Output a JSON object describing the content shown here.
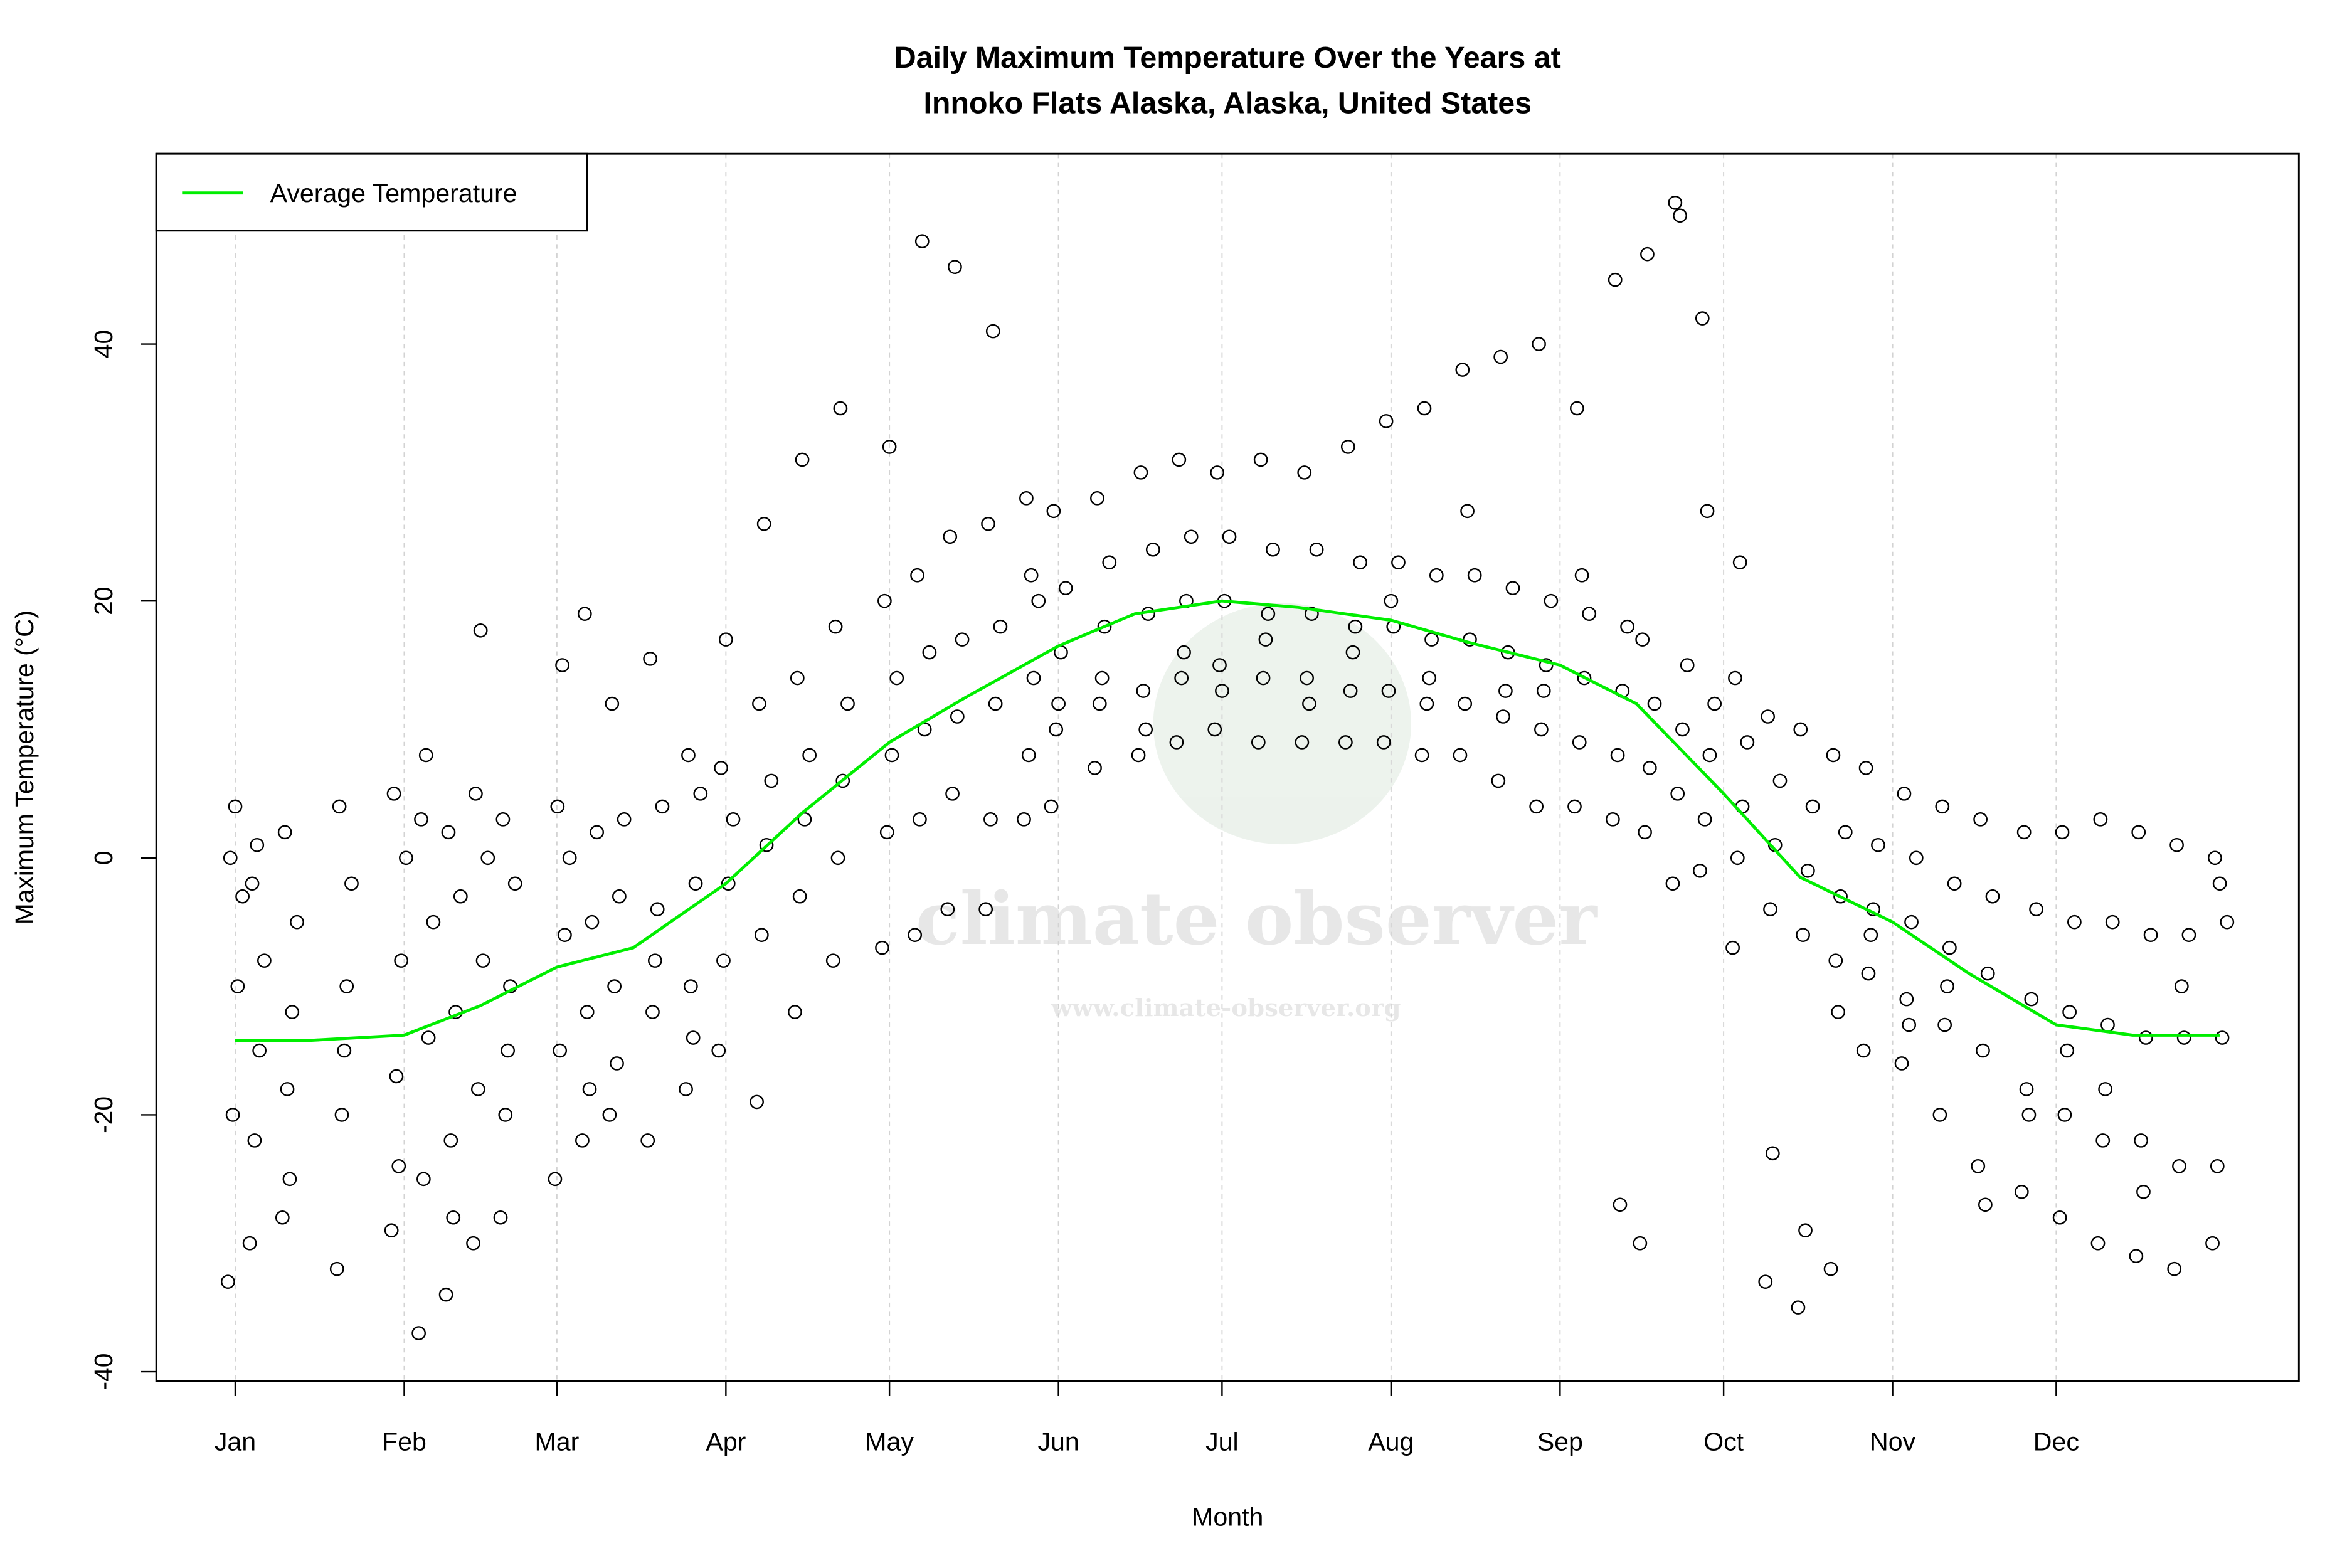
{
  "chart_data": {
    "type": "scatter",
    "title": [
      "Daily Maximum Temperature Over the Years at",
      "Innoko Flats Alaska, Alaska, United States"
    ],
    "xlabel": "Month",
    "ylabel": "Maximum Temperature (°C)",
    "x_unit": "day of year",
    "xlim": [
      -13,
      380
    ],
    "ylim": [
      -41,
      54
    ],
    "x_ticks": [
      {
        "day": 1,
        "label": "Jan"
      },
      {
        "day": 32,
        "label": "Feb"
      },
      {
        "day": 60,
        "label": "Mar"
      },
      {
        "day": 91,
        "label": "Apr"
      },
      {
        "day": 121,
        "label": "May"
      },
      {
        "day": 152,
        "label": "Jun"
      },
      {
        "day": 182,
        "label": "Jul"
      },
      {
        "day": 213,
        "label": "Aug"
      },
      {
        "day": 244,
        "label": "Sep"
      },
      {
        "day": 274,
        "label": "Oct"
      },
      {
        "day": 305,
        "label": "Nov"
      },
      {
        "day": 335,
        "label": "Dec"
      }
    ],
    "y_ticks": [
      -40,
      -20,
      0,
      20,
      40
    ],
    "grid": "vertical dashed at month ticks",
    "legend": {
      "placement": "top-left",
      "entries": [
        {
          "label": "Average Temperature",
          "color": "#00ee00"
        }
      ]
    },
    "point_style": {
      "shape": "open-circle",
      "color": "#000000"
    },
    "average_curve": {
      "name": "Average Temperature",
      "color": "#00ee00",
      "points": [
        [
          1,
          -14.2
        ],
        [
          15,
          -14.2
        ],
        [
          32,
          -13.8
        ],
        [
          46,
          -11.5
        ],
        [
          60,
          -8.5
        ],
        [
          74,
          -7
        ],
        [
          91,
          -2
        ],
        [
          105,
          3.5
        ],
        [
          121,
          9
        ],
        [
          135,
          12.5
        ],
        [
          152,
          16.5
        ],
        [
          166,
          19
        ],
        [
          182,
          20
        ],
        [
          196,
          19.5
        ],
        [
          213,
          18.5
        ],
        [
          227,
          16.8
        ],
        [
          244,
          15
        ],
        [
          258,
          12
        ],
        [
          274,
          5
        ],
        [
          288,
          -1.5
        ],
        [
          305,
          -5
        ],
        [
          319,
          -9
        ],
        [
          335,
          -13
        ],
        [
          349,
          -13.8
        ],
        [
          365,
          -13.8
        ]
      ]
    },
    "points_by_day": [
      [
        1,
        [
          -33,
          -20,
          -10,
          -3,
          0,
          4
        ]
      ],
      [
        5,
        [
          -30,
          -22,
          -15,
          -8,
          -2,
          1
        ]
      ],
      [
        11,
        [
          -28,
          -18,
          -12,
          -5,
          2,
          -25
        ]
      ],
      [
        21,
        [
          -32,
          -20,
          -10,
          -2,
          4,
          -15
        ]
      ],
      [
        31,
        [
          -29,
          -17,
          -8,
          0,
          5,
          -24
        ]
      ],
      [
        36,
        [
          -37,
          -25,
          -14,
          -5,
          3,
          8
        ]
      ],
      [
        41,
        [
          -34,
          -22,
          -12,
          -3,
          2,
          -28
        ]
      ],
      [
        46,
        [
          -30,
          -18,
          -8,
          0,
          5,
          17.7
        ]
      ],
      [
        51,
        [
          -28,
          -20,
          -10,
          -2,
          3,
          -15
        ]
      ],
      [
        61,
        [
          -25,
          -15,
          -6,
          0,
          4,
          15
        ]
      ],
      [
        66,
        [
          -22,
          -12,
          -5,
          2,
          19,
          -18
        ]
      ],
      [
        71,
        [
          -20,
          -10,
          -3,
          3,
          12,
          -16
        ]
      ],
      [
        78,
        [
          -22,
          -12,
          -4,
          4,
          15.5,
          -8
        ]
      ],
      [
        85,
        [
          -18,
          -10,
          -2,
          5,
          8,
          -14
        ]
      ],
      [
        91,
        [
          -15,
          -8,
          -2,
          3,
          7,
          17
        ]
      ],
      [
        98,
        [
          -19,
          -6,
          1,
          6,
          12,
          26
        ]
      ],
      [
        105,
        [
          -12,
          -3,
          3,
          8,
          14,
          31
        ]
      ],
      [
        112,
        [
          -8,
          0,
          6,
          12,
          18,
          35
        ]
      ],
      [
        121,
        [
          -7,
          2,
          8,
          14,
          20,
          32
        ]
      ],
      [
        127,
        [
          -6,
          3,
          10,
          16,
          22,
          48
        ]
      ],
      [
        133,
        [
          -4,
          5,
          11,
          17,
          25,
          46
        ]
      ],
      [
        140,
        [
          -4,
          3,
          12,
          18,
          26,
          41
        ]
      ],
      [
        147,
        [
          3,
          8,
          14,
          20,
          28,
          22
        ]
      ],
      [
        152,
        [
          4,
          10,
          16,
          21,
          27,
          12
        ]
      ],
      [
        160,
        [
          7,
          12,
          18,
          23,
          28,
          14
        ]
      ],
      [
        168,
        [
          8,
          13,
          19,
          24,
          30,
          10
        ]
      ],
      [
        175,
        [
          9,
          14,
          20,
          25,
          31,
          16
        ]
      ],
      [
        182,
        [
          10,
          15,
          20,
          25,
          30,
          13
        ]
      ],
      [
        190,
        [
          9,
          14,
          19,
          24,
          31,
          17
        ]
      ],
      [
        198,
        [
          9,
          14,
          19,
          24,
          30,
          12
        ]
      ],
      [
        206,
        [
          9,
          13,
          18,
          23,
          32,
          16
        ]
      ],
      [
        213,
        [
          9,
          13,
          18,
          23,
          34,
          20
        ]
      ],
      [
        220,
        [
          8,
          12,
          17,
          22,
          35,
          14
        ]
      ],
      [
        227,
        [
          8,
          12,
          17,
          22,
          38,
          27
        ]
      ],
      [
        234,
        [
          6,
          11,
          16,
          21,
          39,
          13
        ]
      ],
      [
        241,
        [
          4,
          10,
          15,
          20,
          40,
          13
        ]
      ],
      [
        248,
        [
          4,
          9,
          14,
          19,
          35,
          22
        ]
      ],
      [
        255,
        [
          3,
          8,
          13,
          18,
          45,
          -27
        ]
      ],
      [
        260,
        [
          -30,
          2,
          7,
          12,
          17,
          47
        ]
      ],
      [
        266,
        [
          -2,
          5,
          10,
          15,
          51,
          50
        ]
      ],
      [
        271,
        [
          -1,
          3,
          8,
          12,
          42,
          27
        ]
      ],
      [
        277,
        [
          -7,
          0,
          4,
          9,
          14,
          23
        ]
      ],
      [
        283,
        [
          -33,
          -4,
          1,
          6,
          11,
          -23
        ]
      ],
      [
        289,
        [
          -35,
          -6,
          -1,
          4,
          10,
          -29
        ]
      ],
      [
        295,
        [
          -32,
          -8,
          -3,
          2,
          8,
          -12
        ]
      ],
      [
        301,
        [
          -15,
          -9,
          -4,
          1,
          7,
          -6
        ]
      ],
      [
        308,
        [
          -16,
          -11,
          -5,
          0,
          5,
          -13
        ]
      ],
      [
        315,
        [
          -20,
          -13,
          -7,
          -2,
          4,
          -10
        ]
      ],
      [
        322,
        [
          -24,
          -15,
          -9,
          -3,
          3,
          -27
        ]
      ],
      [
        330,
        [
          -26,
          -18,
          -11,
          -4,
          2,
          -20
        ]
      ],
      [
        337,
        [
          -28,
          -20,
          -12,
          -5,
          2,
          -15
        ]
      ],
      [
        344,
        [
          -30,
          -22,
          -13,
          -5,
          3,
          -18
        ]
      ],
      [
        351,
        [
          -31,
          -22,
          -14,
          -6,
          2,
          -26
        ]
      ],
      [
        358,
        [
          -32,
          -24,
          -14,
          -6,
          1,
          -10
        ]
      ],
      [
        365,
        [
          -30,
          -24,
          -14,
          -5,
          0,
          -2
        ]
      ]
    ]
  },
  "watermark": {
    "name": "climate observer",
    "url": "www.climate-observer.org"
  }
}
